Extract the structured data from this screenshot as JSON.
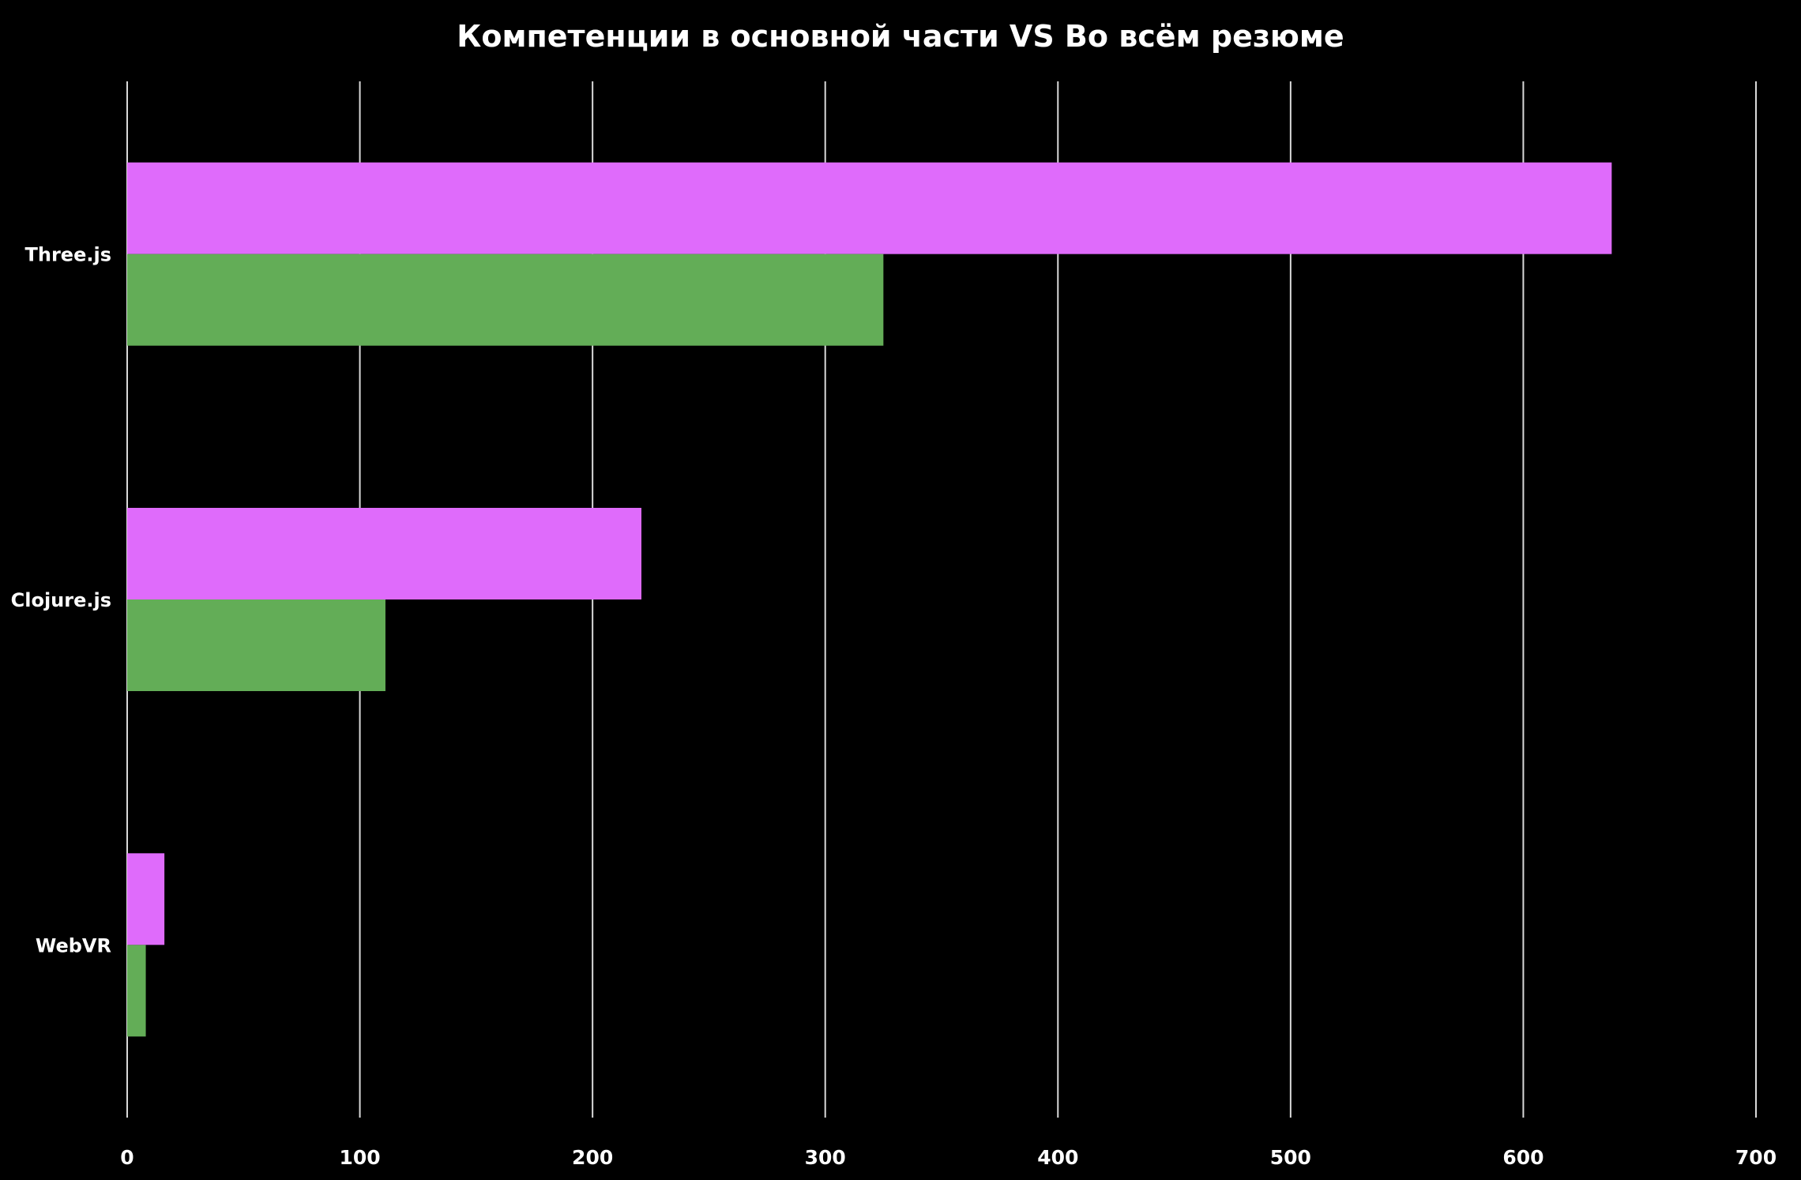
{
  "chart_data": {
    "type": "bar",
    "orientation": "horizontal",
    "title": "Компетенции в основной части VS Во всём резюме",
    "xlabel": "",
    "ylabel": "",
    "categories": [
      "Three.js",
      "Clojure.js",
      "WebVR"
    ],
    "series": [
      {
        "color": "#df6bfb",
        "values": [
          638,
          221,
          16
        ]
      },
      {
        "color": "#63ad57",
        "values": [
          325,
          111,
          8
        ]
      }
    ],
    "xlim": [
      0,
      700
    ],
    "xticks": [
      0,
      100,
      200,
      300,
      400,
      500,
      600,
      700
    ],
    "grid": true,
    "legend": "none",
    "background": "#000000"
  }
}
